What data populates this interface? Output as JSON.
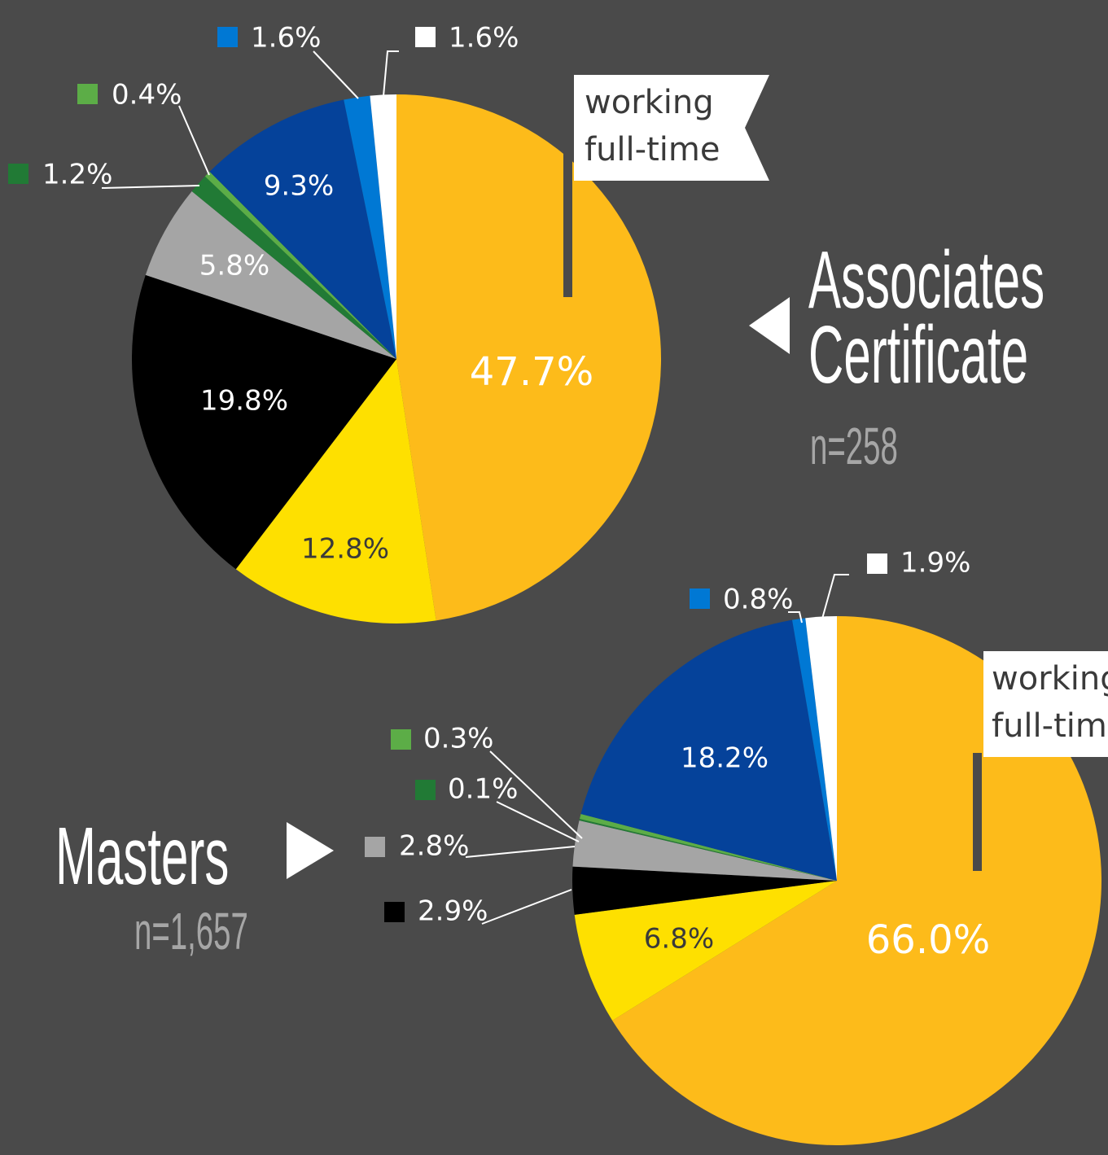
{
  "chart_data": [
    {
      "type": "pie",
      "title": [
        "Associates",
        "Certificate"
      ],
      "subtitle": "n=258",
      "annotation": [
        "working",
        "full-time"
      ],
      "values": [
        47.7,
        12.8,
        19.8,
        5.8,
        1.2,
        0.4,
        9.3,
        1.6,
        1.6
      ],
      "value_labels": [
        "47.7%",
        "12.8%",
        "19.8%",
        "5.8%",
        "1.2%",
        "0.4%",
        "9.3%",
        "1.6%",
        "1.6%"
      ],
      "colors": [
        "#fdbb1a",
        "#fee000",
        "#000000",
        "#a5a5a5",
        "#217a35",
        "#5cad47",
        "#05429a",
        "#0078d4",
        "#ffffff"
      ]
    },
    {
      "type": "pie",
      "title": [
        "Masters"
      ],
      "subtitle": "n=1,657",
      "annotation": [
        "working",
        "full-time"
      ],
      "values": [
        66.0,
        6.8,
        2.9,
        2.8,
        0.1,
        0.3,
        18.2,
        0.8,
        1.9
      ],
      "value_labels": [
        "66.0%",
        "6.8%",
        "2.9%",
        "2.8%",
        "0.1%",
        "0.3%",
        "18.2%",
        "0.8%",
        "1.9%"
      ],
      "colors": [
        "#fdbb1a",
        "#fee000",
        "#000000",
        "#a5a5a5",
        "#217a35",
        "#5cad47",
        "#05429a",
        "#0078d4",
        "#ffffff"
      ]
    }
  ]
}
